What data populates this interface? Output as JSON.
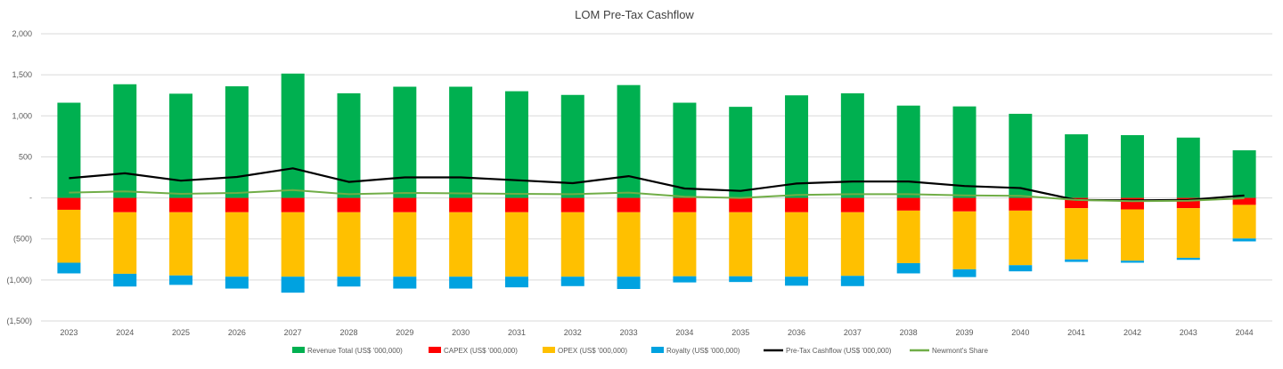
{
  "chart_data": {
    "type": "bar",
    "stacked": true,
    "title": "LOM Pre-Tax Cashflow",
    "xlabel": "",
    "ylabel": "",
    "ylim": [
      -1500,
      2000
    ],
    "y_ticks": [
      2000,
      1500,
      1000,
      500,
      0,
      -500,
      -1000,
      -1500
    ],
    "y_tick_labels": [
      "2,000",
      "1,500",
      "1,000",
      "500",
      "-",
      "(500)",
      "(1,000)",
      "(1,500)"
    ],
    "grid": true,
    "legend_position": "bottom",
    "categories": [
      "2023",
      "2024",
      "2025",
      "2026",
      "2027",
      "2028",
      "2029",
      "2030",
      "2031",
      "2032",
      "2033",
      "2034",
      "2035",
      "2036",
      "2037",
      "2038",
      "2039",
      "2040",
      "2041",
      "2042",
      "2043",
      "2044"
    ],
    "bar_series": [
      {
        "name": "Revenue Total (US$ '000,000)",
        "color": "#00b050",
        "side": "positive",
        "values": [
          1160,
          1385,
          1270,
          1360,
          1515,
          1275,
          1355,
          1355,
          1300,
          1255,
          1375,
          1160,
          1110,
          1250,
          1275,
          1125,
          1115,
          1025,
          775,
          765,
          735,
          580
        ]
      },
      {
        "name": "CAPEX (US$ '000,000)",
        "color": "#ff0000",
        "side": "negative",
        "values": [
          -145,
          -175,
          -175,
          -175,
          -175,
          -175,
          -175,
          -175,
          -175,
          -175,
          -175,
          -175,
          -175,
          -175,
          -175,
          -155,
          -165,
          -155,
          -125,
          -140,
          -125,
          -85
        ]
      },
      {
        "name": "OPEX (US$ '000,000)",
        "color": "#ffc000",
        "side": "negative",
        "values": [
          -645,
          -750,
          -770,
          -785,
          -785,
          -785,
          -785,
          -785,
          -785,
          -785,
          -785,
          -780,
          -780,
          -785,
          -775,
          -640,
          -705,
          -665,
          -625,
          -625,
          -605,
          -410
        ]
      },
      {
        "name": "Royalty (US$ '000,000)",
        "color": "#00a2e0",
        "side": "negative",
        "values": [
          -130,
          -155,
          -115,
          -145,
          -195,
          -120,
          -145,
          -145,
          -130,
          -115,
          -150,
          -75,
          -70,
          -110,
          -125,
          -125,
          -95,
          -75,
          -30,
          -25,
          -25,
          -35
        ]
      }
    ],
    "line_series": [
      {
        "name": "Pre-Tax Cashflow (US$ '000,000)",
        "color": "#000000",
        "values": [
          240,
          300,
          210,
          255,
          360,
          195,
          250,
          250,
          215,
          180,
          265,
          115,
          85,
          175,
          200,
          200,
          145,
          120,
          -25,
          -30,
          -25,
          30
        ]
      },
      {
        "name": "Newmont's Share",
        "color": "#70ad47",
        "values": [
          65,
          80,
          50,
          60,
          95,
          45,
          60,
          55,
          50,
          45,
          65,
          15,
          0,
          35,
          45,
          45,
          30,
          25,
          -25,
          -40,
          -35,
          -5
        ]
      }
    ]
  }
}
